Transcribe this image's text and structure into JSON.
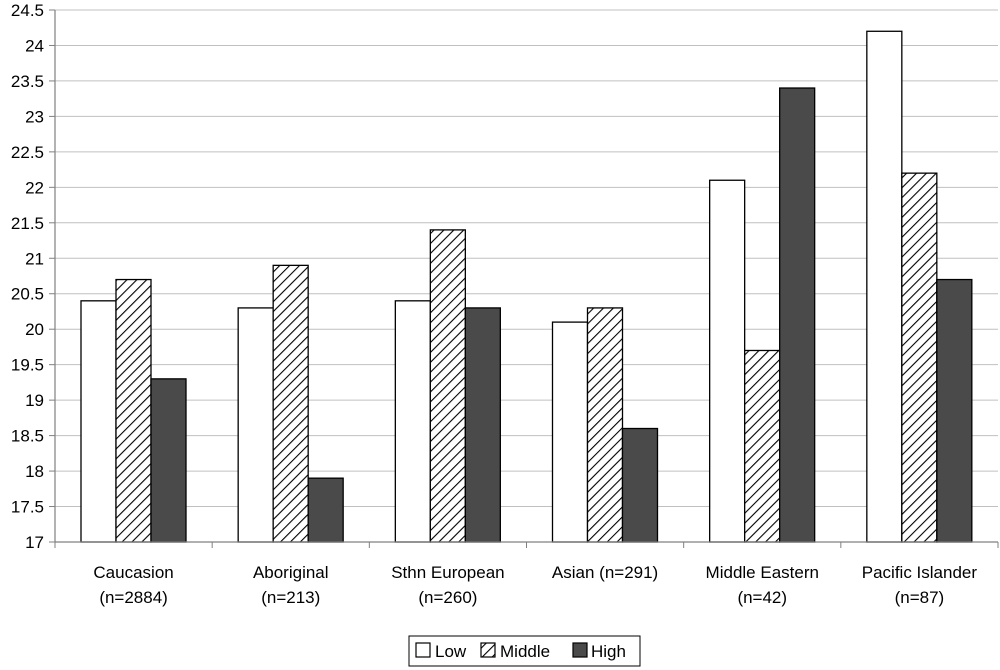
{
  "chart_data": {
    "type": "bar",
    "title": "",
    "xlabel": "",
    "ylabel": "",
    "ylim": [
      17,
      24.5
    ],
    "yticks": [
      "17",
      "17.5",
      "18",
      "18.5",
      "19",
      "19.5",
      "20",
      "20.5",
      "21",
      "21.5",
      "22",
      "22.5",
      "23",
      "23.5",
      "24",
      "24.5"
    ],
    "grid": true,
    "legend_position": "bottom",
    "categories": [
      [
        "Caucasion",
        "(n=2884)"
      ],
      [
        "Aboriginal",
        "(n=213)"
      ],
      [
        "Sthn European",
        "(n=260)"
      ],
      [
        "Asian (n=291)",
        ""
      ],
      [
        "Middle Eastern",
        "(n=42)"
      ],
      [
        "Pacific Islander",
        "(n=87)"
      ]
    ],
    "series": [
      {
        "name": "Low",
        "fill": "#ffffff",
        "pattern": "none",
        "values": [
          20.4,
          20.3,
          20.4,
          20.1,
          22.1,
          24.2
        ]
      },
      {
        "name": "Middle",
        "fill": "#ffffff",
        "pattern": "diagonal-hatch",
        "values": [
          20.7,
          20.9,
          21.4,
          20.3,
          19.7,
          22.2
        ]
      },
      {
        "name": "High",
        "fill": "#4a4a4a",
        "pattern": "none",
        "values": [
          19.3,
          17.9,
          20.3,
          18.6,
          23.4,
          20.7
        ]
      }
    ],
    "colors": {
      "grid": "#c0c0c0",
      "axis": "#808080",
      "bar_stroke": "#000000"
    }
  }
}
